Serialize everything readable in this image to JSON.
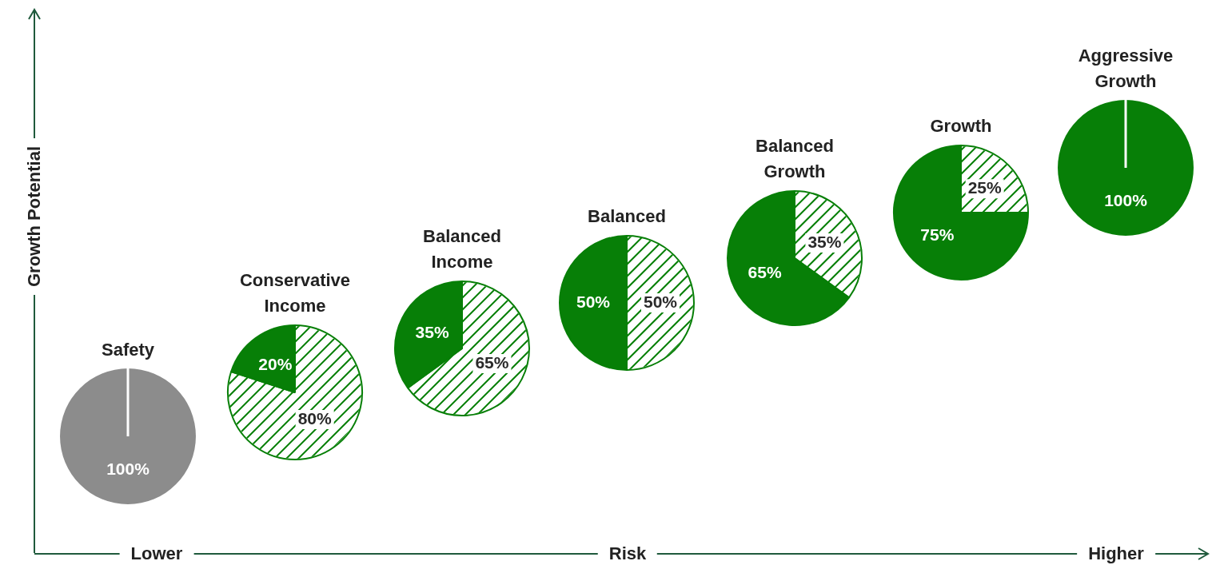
{
  "chart_data": [
    {
      "type": "pie",
      "title": "Safety",
      "categories": [
        null
      ],
      "values": [
        100
      ],
      "colors": [
        "#8c8c8c"
      ],
      "value_labels": [
        "100%"
      ]
    },
    {
      "type": "pie",
      "title": "Conservative Income",
      "categories": [
        null,
        null
      ],
      "values": [
        80,
        20
      ],
      "colors": [
        "#ffffff",
        "#077f07"
      ],
      "value_labels": [
        "80%",
        "20%"
      ]
    },
    {
      "type": "pie",
      "title": "Balanced Income",
      "categories": [
        null,
        null
      ],
      "values": [
        65,
        35
      ],
      "colors": [
        "#ffffff",
        "#077f07"
      ],
      "value_labels": [
        "65%",
        "35%"
      ]
    },
    {
      "type": "pie",
      "title": "Balanced",
      "categories": [
        null,
        null
      ],
      "values": [
        50,
        50
      ],
      "colors": [
        "#ffffff",
        "#077f07"
      ],
      "value_labels": [
        "50%",
        "50%"
      ]
    },
    {
      "type": "pie",
      "title": "Balanced Growth",
      "categories": [
        null,
        null
      ],
      "values": [
        35,
        65
      ],
      "colors": [
        "#ffffff",
        "#077f07"
      ],
      "value_labels": [
        "35%",
        "65%"
      ]
    },
    {
      "type": "pie",
      "title": "Growth",
      "categories": [
        null,
        null
      ],
      "values": [
        25,
        75
      ],
      "colors": [
        "#ffffff",
        "#077f07"
      ],
      "value_labels": [
        "25%",
        "75%"
      ]
    },
    {
      "type": "pie",
      "title": "Aggressive Growth",
      "categories": [
        null
      ],
      "values": [
        100
      ],
      "colors": [
        "#077f07"
      ],
      "value_labels": [
        "100%"
      ]
    },
    {
      "type": "other",
      "xlabel": "Risk",
      "ylabel": "Growth Potential",
      "annotations": [
        "Lower",
        "Higher"
      ]
    }
  ]
}
